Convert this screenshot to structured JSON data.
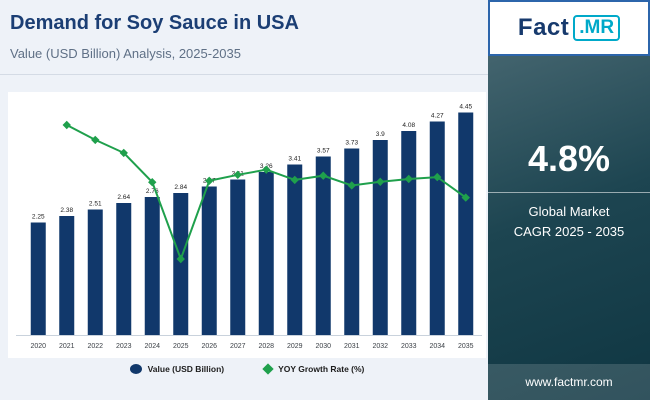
{
  "page": {
    "background": "#eef2f8"
  },
  "header": {
    "title": "Demand for Soy Sauce in USA",
    "subtitle": "Value (USD Billion) Analysis, 2025-2035"
  },
  "logo": {
    "text_primary": "Fact",
    "text_secondary": ".MR",
    "border_color": "#2c65ab",
    "accent_color": "#00a9c9"
  },
  "side_panel": {
    "stat_value": "4.8%",
    "stat_label_line1": "Global Market",
    "stat_label_line2": "CAGR 2025 - 2035",
    "website": "www.factmr.com"
  },
  "chart_data": {
    "type": "bar",
    "title": "Demand for Soy Sauce in USA",
    "xlabel": "",
    "ylabel": "",
    "grid": false,
    "legend_position": "bottom",
    "bar_value_labels_visible": true,
    "line_value_labels_visible": false,
    "categories": [
      "2020",
      "2021",
      "2022",
      "2023",
      "2024",
      "2025",
      "2026",
      "2027",
      "2028",
      "2029",
      "2030",
      "2031",
      "2032",
      "2033",
      "2034",
      "2035"
    ],
    "series": [
      {
        "name": "Value (USD Billion)",
        "type": "bar",
        "color": "#11386b",
        "values": [
          2.25,
          2.38,
          2.51,
          2.64,
          2.76,
          2.84,
          2.97,
          3.11,
          3.26,
          3.41,
          3.57,
          3.73,
          3.9,
          4.08,
          4.27,
          4.45
        ]
      },
      {
        "name": "YOY Growth Rate (%)",
        "type": "line",
        "color": "#1fa04c",
        "values": [
          null,
          5.78,
          5.46,
          5.18,
          4.55,
          2.9,
          4.58,
          4.71,
          4.82,
          4.6,
          4.69,
          4.48,
          4.56,
          4.62,
          4.66,
          4.22
        ]
      }
    ]
  },
  "legend": {
    "items": [
      {
        "label": "Value (USD Billion)",
        "color": "#11386b",
        "shape": "circle"
      },
      {
        "label": "YOY Growth Rate (%)",
        "color": "#1fa04c",
        "shape": "diamond"
      }
    ]
  }
}
